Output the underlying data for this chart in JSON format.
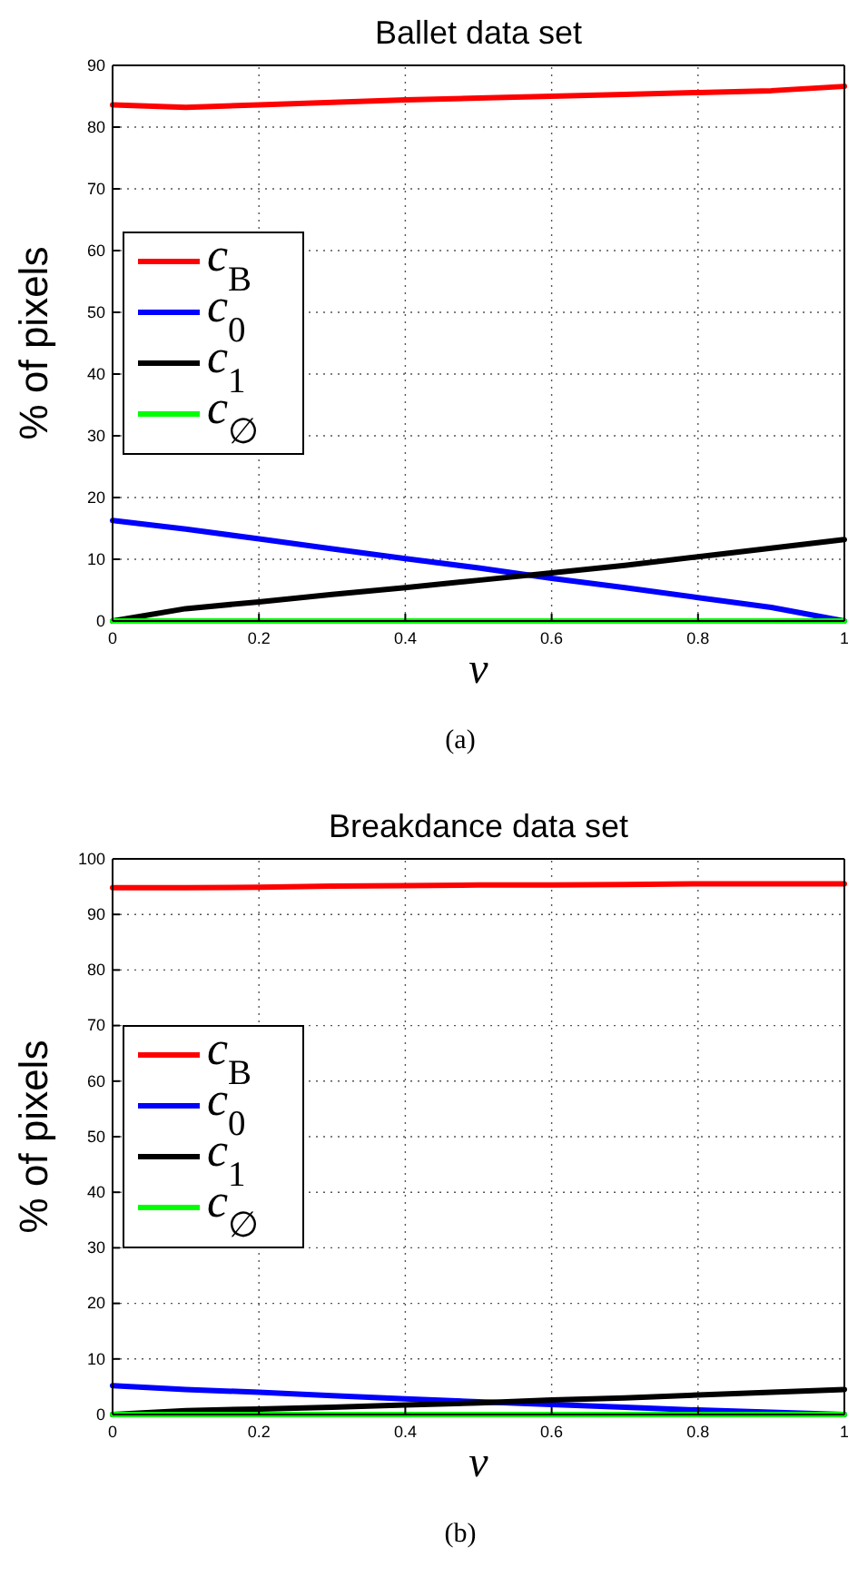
{
  "chart_data": [
    {
      "type": "line",
      "title": "Ballet data set",
      "xlabel": "v",
      "ylabel": "% of pixels",
      "annotations": [
        "(a)"
      ],
      "x": [
        0,
        0.1,
        0.2,
        0.3,
        0.4,
        0.5,
        0.6,
        0.7,
        0.8,
        0.9,
        1
      ],
      "xlim": [
        0,
        1
      ],
      "xticks": [
        0,
        0.2,
        0.4,
        0.6,
        0.8,
        1
      ],
      "ylim": [
        0,
        90
      ],
      "yticks": [
        0,
        10,
        20,
        30,
        40,
        50,
        60,
        70,
        80,
        90
      ],
      "grid": true,
      "legend": "left",
      "marker": "none",
      "line_style": "solid",
      "series": [
        {
          "name": "c$_{B}$",
          "color": "#ff0000",
          "values": [
            83.6,
            83.2,
            83.6,
            84.0,
            84.4,
            84.7,
            85.0,
            85.3,
            85.6,
            85.9,
            86.6
          ]
        },
        {
          "name": "c$_{0}$",
          "color": "#0000ff",
          "values": [
            16.3,
            14.9,
            13.3,
            11.7,
            10.1,
            8.6,
            6.9,
            5.4,
            3.8,
            2.2,
            0
          ]
        },
        {
          "name": "c$_{1}$",
          "color": "#000000",
          "values": [
            0,
            2.0,
            3.1,
            4.3,
            5.4,
            6.6,
            7.8,
            9.0,
            10.4,
            11.8,
            13.2
          ]
        },
        {
          "name": "c$_{∅}$",
          "color": "#00ff00",
          "values": [
            0,
            0,
            0,
            0,
            0,
            0,
            0,
            0,
            0,
            0,
            0
          ]
        }
      ]
    },
    {
      "type": "line",
      "title": "Breakdance data set",
      "xlabel": "v",
      "ylabel": "% of pixels",
      "annotations": [
        "(b)"
      ],
      "x": [
        0,
        0.1,
        0.2,
        0.3,
        0.4,
        0.5,
        0.6,
        0.7,
        0.8,
        0.9,
        1
      ],
      "xlim": [
        0,
        1
      ],
      "xticks": [
        0,
        0.2,
        0.4,
        0.6,
        0.8,
        1
      ],
      "ylim": [
        0,
        100
      ],
      "yticks": [
        0,
        10,
        20,
        30,
        40,
        50,
        60,
        70,
        80,
        90,
        100
      ],
      "grid": true,
      "legend": "left",
      "marker": "none",
      "line_style": "solid",
      "series": [
        {
          "name": "c$_{B}$",
          "color": "#ff0000",
          "values": [
            94.8,
            94.8,
            94.9,
            95.1,
            95.2,
            95.3,
            95.3,
            95.4,
            95.5,
            95.5,
            95.5
          ]
        },
        {
          "name": "c$_{0}$",
          "color": "#0000ff",
          "values": [
            5.2,
            4.5,
            4.0,
            3.4,
            2.8,
            2.3,
            1.8,
            1.3,
            0.8,
            0.4,
            0
          ]
        },
        {
          "name": "c$_{1}$",
          "color": "#000000",
          "values": [
            0,
            0.7,
            1.0,
            1.3,
            1.7,
            2.1,
            2.6,
            3.0,
            3.5,
            4.0,
            4.5
          ]
        },
        {
          "name": "c$_{∅}$",
          "color": "#00ff00",
          "values": [
            0,
            0,
            0,
            0,
            0,
            0,
            0,
            0,
            0,
            0,
            0
          ]
        }
      ]
    }
  ]
}
